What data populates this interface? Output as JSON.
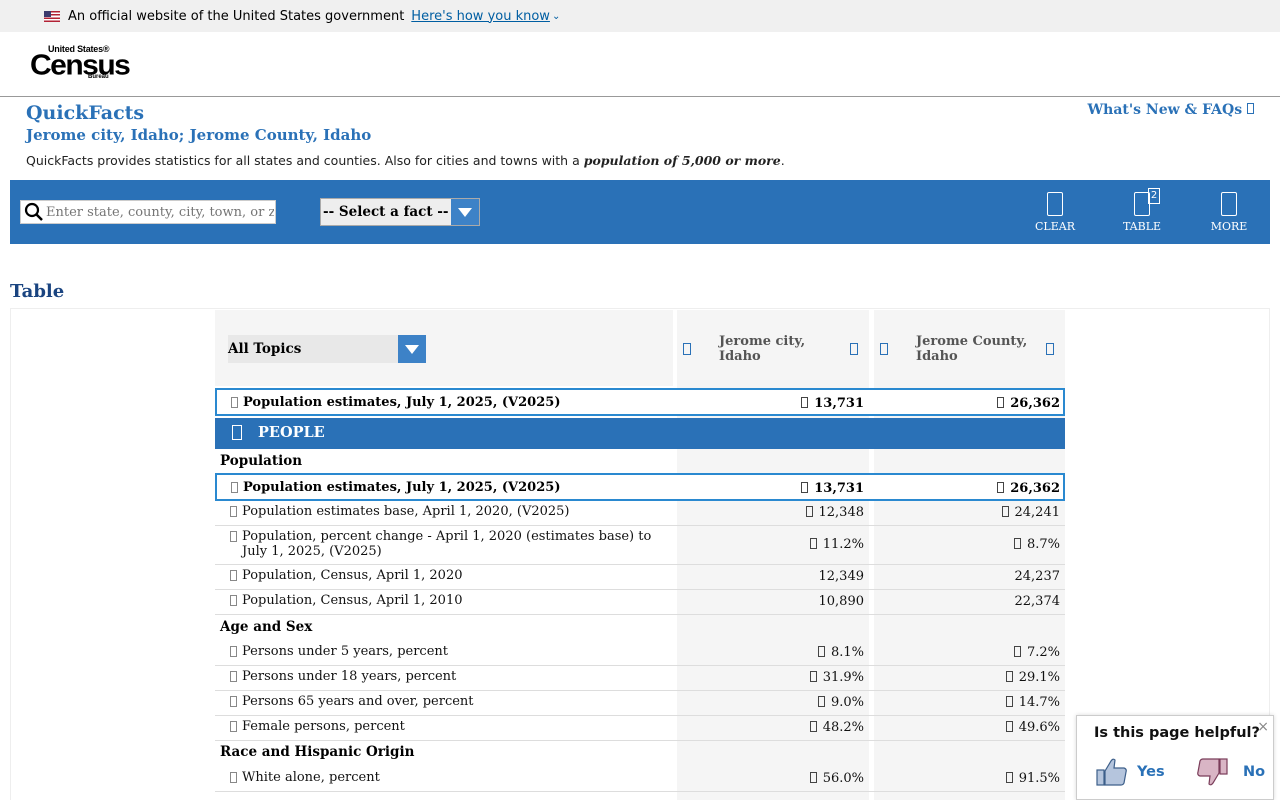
{
  "gov_banner": {
    "text": "An official website of the United States government",
    "link": "Here's how you know"
  },
  "logo": {
    "line1": "United States®",
    "line2": "Census",
    "line3": "Bureau"
  },
  "quickfacts": {
    "title": "QuickFacts",
    "subtitle": "Jerome city, Idaho; Jerome County, Idaho",
    "desc_prefix": "QuickFacts provides statistics for all states and counties. Also for cities and towns with a ",
    "desc_emph": "population of 5,000 or more",
    "desc_suffix": ".",
    "whats_new": "What's New & FAQs"
  },
  "toolbar": {
    "search_placeholder": "Enter state, county, city, town, or zip code",
    "fact_select": "-- Select a fact --",
    "clear": "CLEAR",
    "table": "TABLE",
    "table_badge": "2",
    "more": "MORE"
  },
  "section_title": "Table",
  "table": {
    "topics": "All Topics",
    "col1": "Jerome city, Idaho",
    "col2": "Jerome County, Idaho",
    "pinned": {
      "label": "Population estimates, July 1, 2025, (V2025)",
      "v1": "13,731",
      "v2": "26,362"
    },
    "people": "PEOPLE",
    "cat_population": "Population",
    "rows_population": [
      {
        "label": "Population estimates, July 1, 2025, (V2025)",
        "v1": "13,731",
        "v2": "26,362"
      },
      {
        "label": "Population estimates base, April 1, 2020, (V2025)",
        "v1": "12,348",
        "v2": "24,241"
      },
      {
        "label": "Population, percent change - April 1, 2020 (estimates base) to July 1, 2025, (V2025)",
        "v1": "11.2%",
        "v2": "8.7%"
      },
      {
        "label": "Population, Census, April 1, 2020",
        "v1": "12,349",
        "v2": "24,237"
      },
      {
        "label": "Population, Census, April 1, 2010",
        "v1": "10,890",
        "v2": "22,374"
      }
    ],
    "cat_age": "Age and Sex",
    "rows_age": [
      {
        "label": "Persons under 5 years, percent",
        "v1": "8.1%",
        "v2": "7.2%"
      },
      {
        "label": "Persons under 18 years, percent",
        "v1": "31.9%",
        "v2": "29.1%"
      },
      {
        "label": "Persons 65 years and over, percent",
        "v1": "9.0%",
        "v2": "14.7%"
      },
      {
        "label": "Female persons, percent",
        "v1": "48.2%",
        "v2": "49.6%"
      }
    ],
    "cat_race": "Race and Hispanic Origin",
    "rows_race": [
      {
        "label": "White alone, percent",
        "v1": "56.0%",
        "v2": "91.5%"
      }
    ]
  },
  "feedback": {
    "question": "Is this page helpful?",
    "yes": "Yes",
    "no": "No",
    "close": "×"
  },
  "colors": {
    "primary_blue": "#2a71b7",
    "highlight_border": "#2a89d0",
    "link_blue": "#005ea2"
  }
}
